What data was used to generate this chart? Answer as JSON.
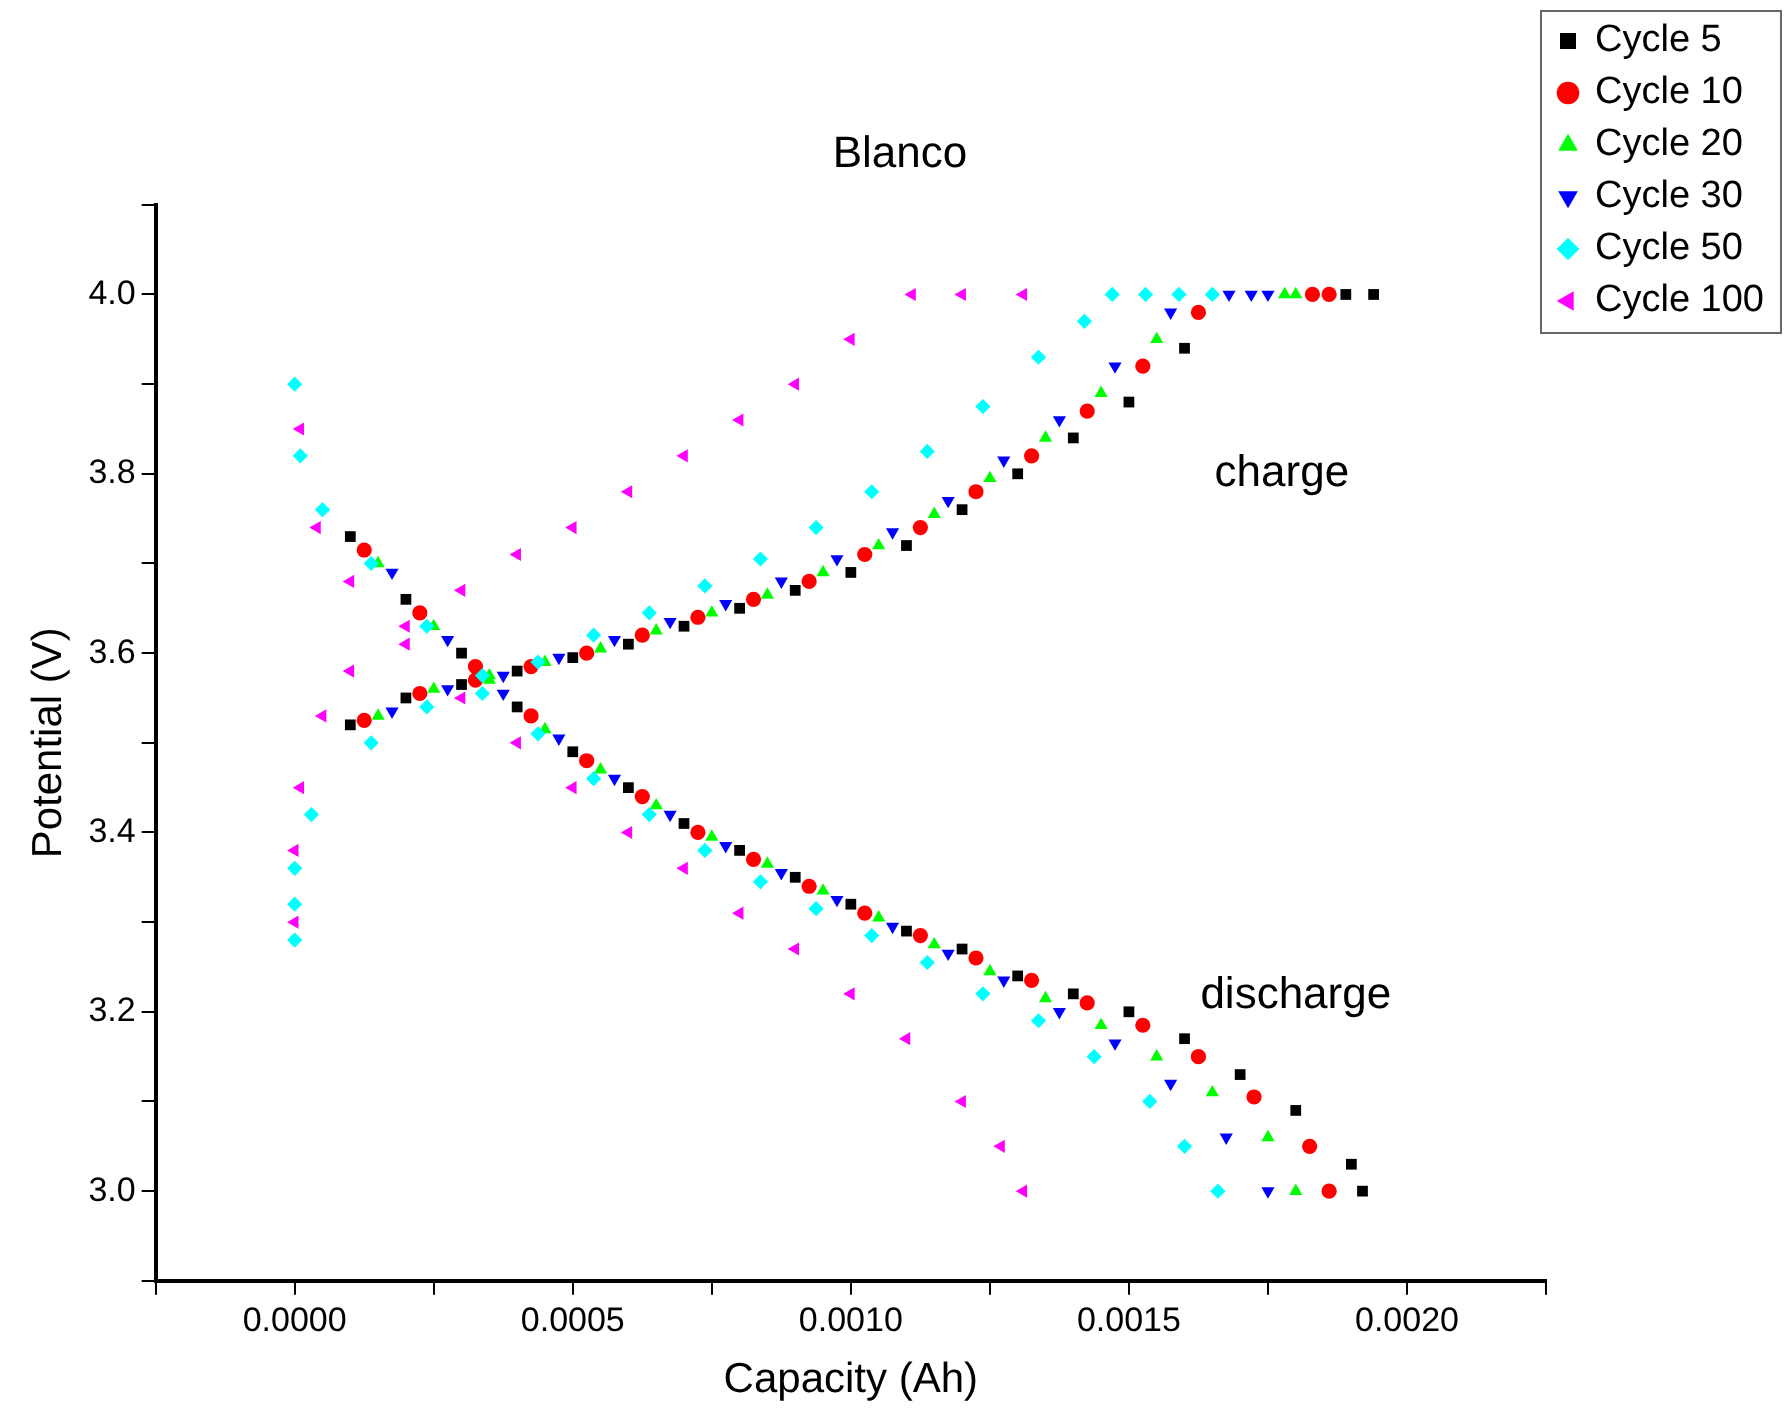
{
  "chart_data": {
    "type": "scatter",
    "title": "Blanco",
    "xlabel": "Capacity (Ah)",
    "ylabel": "Potential (V)",
    "xlim": [
      -0.00025,
      0.00225
    ],
    "ylim": [
      2.9,
      4.1
    ],
    "xticks": [
      {
        "value": -0.00025,
        "label": null
      },
      {
        "value": 0,
        "label": "0.0000"
      },
      {
        "value": 0.00025,
        "label": null
      },
      {
        "value": 0.0005,
        "label": "0.0005"
      },
      {
        "value": 0.00075,
        "label": null
      },
      {
        "value": 0.001,
        "label": "0.0010"
      },
      {
        "value": 0.00125,
        "label": null
      },
      {
        "value": 0.0015,
        "label": "0.0015"
      },
      {
        "value": 0.00175,
        "label": null
      },
      {
        "value": 0.002,
        "label": "0.0020"
      },
      {
        "value": 0.00225,
        "label": null
      }
    ],
    "yticks": [
      {
        "value": 2.9,
        "label": null
      },
      {
        "value": 3.0,
        "label": "3.0"
      },
      {
        "value": 3.1,
        "label": null
      },
      {
        "value": 3.2,
        "label": "3.2"
      },
      {
        "value": 3.3,
        "label": null
      },
      {
        "value": 3.4,
        "label": "3.4"
      },
      {
        "value": 3.5,
        "label": null
      },
      {
        "value": 3.6,
        "label": "3.6"
      },
      {
        "value": 3.7,
        "label": null
      },
      {
        "value": 3.8,
        "label": "3.8"
      },
      {
        "value": 3.9,
        "label": null
      },
      {
        "value": 4.0,
        "label": "4.0"
      },
      {
        "value": 4.1,
        "label": null
      }
    ],
    "grid": false,
    "legend": "top right",
    "annotations": [
      "charge",
      "discharge"
    ],
    "series": [
      {
        "name": "Cycle 5",
        "color": "#000000",
        "marker": "square",
        "x": [
          0.0001,
          0.0002,
          0.0003,
          0.0004,
          0.0005,
          0.0006,
          0.0007,
          0.0008,
          0.0009,
          0.001,
          0.0011,
          0.0012,
          0.0013,
          0.0014,
          0.0015,
          0.0016,
          0.00189,
          0.00194,
          0.0001,
          0.0002,
          0.0003,
          0.0004,
          0.0005,
          0.0006,
          0.0007,
          0.0008,
          0.0009,
          0.001,
          0.0011,
          0.0012,
          0.0013,
          0.0014,
          0.0015,
          0.0016,
          0.0017,
          0.0018,
          0.0019,
          0.00192
        ],
        "values": [
          3.52,
          3.55,
          3.565,
          3.58,
          3.595,
          3.61,
          3.63,
          3.65,
          3.67,
          3.69,
          3.72,
          3.76,
          3.8,
          3.84,
          3.88,
          3.94,
          4.0,
          4.0,
          3.73,
          3.66,
          3.6,
          3.54,
          3.49,
          3.45,
          3.41,
          3.38,
          3.35,
          3.32,
          3.29,
          3.27,
          3.24,
          3.22,
          3.2,
          3.17,
          3.13,
          3.09,
          3.03,
          3.0
        ]
      },
      {
        "name": "Cycle 10",
        "color": "#ff0000",
        "marker": "circle",
        "x": [
          0.000125,
          0.000225,
          0.000325,
          0.000425,
          0.000525,
          0.000625,
          0.000725,
          0.000825,
          0.000925,
          0.001025,
          0.001125,
          0.001225,
          0.001325,
          0.001425,
          0.001525,
          0.001625,
          0.00183,
          0.00186,
          0.000125,
          0.000225,
          0.000325,
          0.000425,
          0.000525,
          0.000625,
          0.000725,
          0.000825,
          0.000925,
          0.001025,
          0.001125,
          0.001225,
          0.001325,
          0.001425,
          0.001525,
          0.001625,
          0.001725,
          0.001825,
          0.00186
        ],
        "values": [
          3.525,
          3.555,
          3.57,
          3.585,
          3.6,
          3.62,
          3.64,
          3.66,
          3.68,
          3.71,
          3.74,
          3.78,
          3.82,
          3.87,
          3.92,
          3.98,
          4.0,
          4.0,
          3.715,
          3.645,
          3.585,
          3.53,
          3.48,
          3.44,
          3.4,
          3.37,
          3.34,
          3.31,
          3.285,
          3.26,
          3.235,
          3.21,
          3.185,
          3.15,
          3.105,
          3.05,
          3.0
        ]
      },
      {
        "name": "Cycle 20",
        "color": "#00ff00",
        "marker": "triangle",
        "x": [
          0.00015,
          0.00025,
          0.00035,
          0.00045,
          0.00055,
          0.00065,
          0.00075,
          0.00085,
          0.00095,
          0.00105,
          0.00115,
          0.00125,
          0.00135,
          0.00145,
          0.00155,
          0.00178,
          0.0018,
          0.00015,
          0.00025,
          0.00035,
          0.00045,
          0.00055,
          0.00065,
          0.00075,
          0.00085,
          0.00095,
          0.00105,
          0.00115,
          0.00125,
          0.00135,
          0.00145,
          0.00155,
          0.00165,
          0.00175,
          0.0018
        ],
        "values": [
          3.53,
          3.56,
          3.575,
          3.59,
          3.605,
          3.625,
          3.645,
          3.665,
          3.69,
          3.72,
          3.755,
          3.795,
          3.84,
          3.89,
          3.95,
          4.0,
          4.0,
          3.7,
          3.63,
          3.57,
          3.515,
          3.47,
          3.43,
          3.395,
          3.365,
          3.335,
          3.305,
          3.275,
          3.245,
          3.215,
          3.185,
          3.15,
          3.11,
          3.06,
          3.0
        ]
      },
      {
        "name": "Cycle 30",
        "color": "#0000ff",
        "marker": "triangle-down",
        "x": [
          0.000175,
          0.000275,
          0.000375,
          0.000475,
          0.000575,
          0.000675,
          0.000775,
          0.000875,
          0.000975,
          0.001075,
          0.001175,
          0.001275,
          0.001375,
          0.001475,
          0.001575,
          0.00168,
          0.00172,
          0.00175,
          0.000175,
          0.000275,
          0.000375,
          0.000475,
          0.000575,
          0.000675,
          0.000775,
          0.000875,
          0.000975,
          0.001075,
          0.001175,
          0.001275,
          0.001375,
          0.001475,
          0.001575,
          0.001675,
          0.00175
        ],
        "values": [
          3.535,
          3.56,
          3.575,
          3.595,
          3.615,
          3.635,
          3.655,
          3.68,
          3.705,
          3.735,
          3.77,
          3.815,
          3.86,
          3.92,
          3.98,
          4.0,
          4.0,
          4.0,
          3.69,
          3.615,
          3.555,
          3.505,
          3.46,
          3.42,
          3.385,
          3.355,
          3.325,
          3.295,
          3.265,
          3.235,
          3.2,
          3.165,
          3.12,
          3.06,
          3.0
        ]
      },
      {
        "name": "Cycle 50",
        "color": "#00ffff",
        "marker": "diamond",
        "x": [
          0,
          0,
          0,
          3e-05,
          0.0001375,
          0.0002375,
          0.0003375,
          0.0004375,
          0.0005375,
          0.0006375,
          0.0007375,
          0.0008375,
          0.0009375,
          0.0010375,
          0.0011375,
          0.0012375,
          0.0013375,
          0.00142,
          0.00147,
          0.00153,
          0.00159,
          0.00165,
          0,
          1e-05,
          5e-05,
          0.0001375,
          0.0002375,
          0.0003375,
          0.0004375,
          0.0005375,
          0.0006375,
          0.0007375,
          0.0008375,
          0.0009375,
          0.0010375,
          0.0011375,
          0.0012375,
          0.0013375,
          0.0014375,
          0.0015375,
          0.0016,
          0.00166
        ],
        "values": [
          3.28,
          3.32,
          3.36,
          3.42,
          3.5,
          3.54,
          3.555,
          3.59,
          3.62,
          3.645,
          3.675,
          3.705,
          3.74,
          3.78,
          3.825,
          3.875,
          3.93,
          3.97,
          4.0,
          4.0,
          4.0,
          4.0,
          3.9,
          3.82,
          3.76,
          3.7,
          3.63,
          3.575,
          3.51,
          3.46,
          3.42,
          3.38,
          3.345,
          3.315,
          3.285,
          3.255,
          3.22,
          3.19,
          3.15,
          3.1,
          3.05,
          3.0
        ]
      },
      {
        "name": "Cycle 100",
        "color": "#ff00ff",
        "marker": "triangle-left",
        "x": [
          0,
          0,
          1e-05,
          5e-05,
          0.0001,
          0.0002,
          0.0003,
          0.0004,
          0.0005,
          0.0006,
          0.0007,
          0.0008,
          0.0009,
          0.001,
          0.00111,
          0.0012,
          0.00131,
          1e-05,
          4e-05,
          0.0001,
          0.0002,
          0.0003,
          0.0004,
          0.0005,
          0.0006,
          0.0007,
          0.0008,
          0.0009,
          0.001,
          0.0011,
          0.0012,
          0.00127,
          0.00131
        ],
        "values": [
          3.3,
          3.38,
          3.45,
          3.53,
          3.58,
          3.63,
          3.67,
          3.71,
          3.74,
          3.78,
          3.82,
          3.86,
          3.9,
          3.95,
          4.0,
          4.0,
          4.0,
          3.85,
          3.74,
          3.68,
          3.61,
          3.55,
          3.5,
          3.45,
          3.4,
          3.36,
          3.31,
          3.27,
          3.22,
          3.17,
          3.1,
          3.05,
          3.0
        ]
      }
    ]
  }
}
